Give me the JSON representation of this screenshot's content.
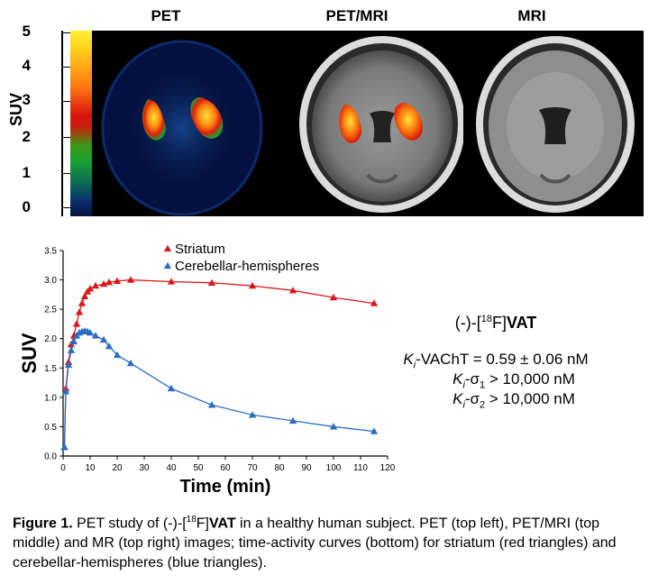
{
  "panels": {
    "pet": "PET",
    "petmri": "PET/MRI",
    "mri": "MRI"
  },
  "colorbar": {
    "label": "SUV",
    "ticks": [
      "5",
      "4",
      "3",
      "2",
      "1",
      "0"
    ]
  },
  "chart_data": {
    "type": "line",
    "xlabel": "Time (min)",
    "ylabel": "SUV",
    "xlim": [
      0,
      120
    ],
    "ylim": [
      0,
      3.5
    ],
    "xticks": [
      "0",
      "10",
      "20",
      "30",
      "40",
      "50",
      "60",
      "70",
      "80",
      "90",
      "100",
      "110",
      "120"
    ],
    "yticks": [
      "0.0",
      "0.5",
      "1.0",
      "1.5",
      "2.0",
      "2.5",
      "3.0",
      "3.5"
    ],
    "legend_position": "top-left",
    "series": [
      {
        "name": "Striatum",
        "color": "#d7191c",
        "x": [
          0.5,
          1,
          2,
          3,
          4,
          5,
          6,
          7,
          8,
          9,
          10,
          12,
          15,
          17,
          20,
          25,
          40,
          55,
          70,
          85,
          100,
          115
        ],
        "y": [
          0.15,
          1.15,
          1.6,
          1.9,
          2.05,
          2.25,
          2.45,
          2.6,
          2.72,
          2.8,
          2.85,
          2.9,
          2.93,
          2.96,
          2.98,
          3.0,
          2.97,
          2.95,
          2.9,
          2.82,
          2.7,
          2.6
        ]
      },
      {
        "name": "Cerebellar-hemispheres",
        "color": "#2a6ebf",
        "x": [
          0.5,
          1,
          2,
          3,
          4,
          5,
          6,
          7,
          8,
          9,
          10,
          12,
          15,
          17,
          20,
          25,
          40,
          55,
          70,
          85,
          100,
          115
        ],
        "y": [
          0.15,
          1.1,
          1.55,
          1.8,
          1.95,
          2.05,
          2.1,
          2.12,
          2.13,
          2.12,
          2.1,
          2.05,
          1.98,
          1.87,
          1.72,
          1.58,
          1.15,
          0.87,
          0.7,
          0.6,
          0.5,
          0.42
        ]
      }
    ]
  },
  "compound": {
    "prefix": "(-)-[",
    "sup": "18",
    "mid": "F]",
    "name": "VAT"
  },
  "affinity": {
    "line1_k": "K",
    "line1_i": "i",
    "line1_rest": "-VAChT = 0.59 ± 0.06 nM",
    "line2_k": "K",
    "line2_i": "i",
    "line2_sigma": "-σ",
    "line2_sub": "1",
    "line2_rest": " > 10,000 nM",
    "line3_k": "K",
    "line3_i": "i",
    "line3_sigma": "-σ",
    "line3_sub": "2",
    "line3_rest": " > 10,000 nM"
  },
  "caption": {
    "label": "Figure 1.",
    "t1": " PET study of (-)-[",
    "sup": "18",
    "t2": "F]",
    "bold": "VAT",
    "t3": " in a healthy human subject. PET (top left), PET/MRI (top middle) and MR (top right) images; time-activity curves (bottom) for striatum (red triangles) and cerebellar-hemispheres (blue triangles)."
  }
}
